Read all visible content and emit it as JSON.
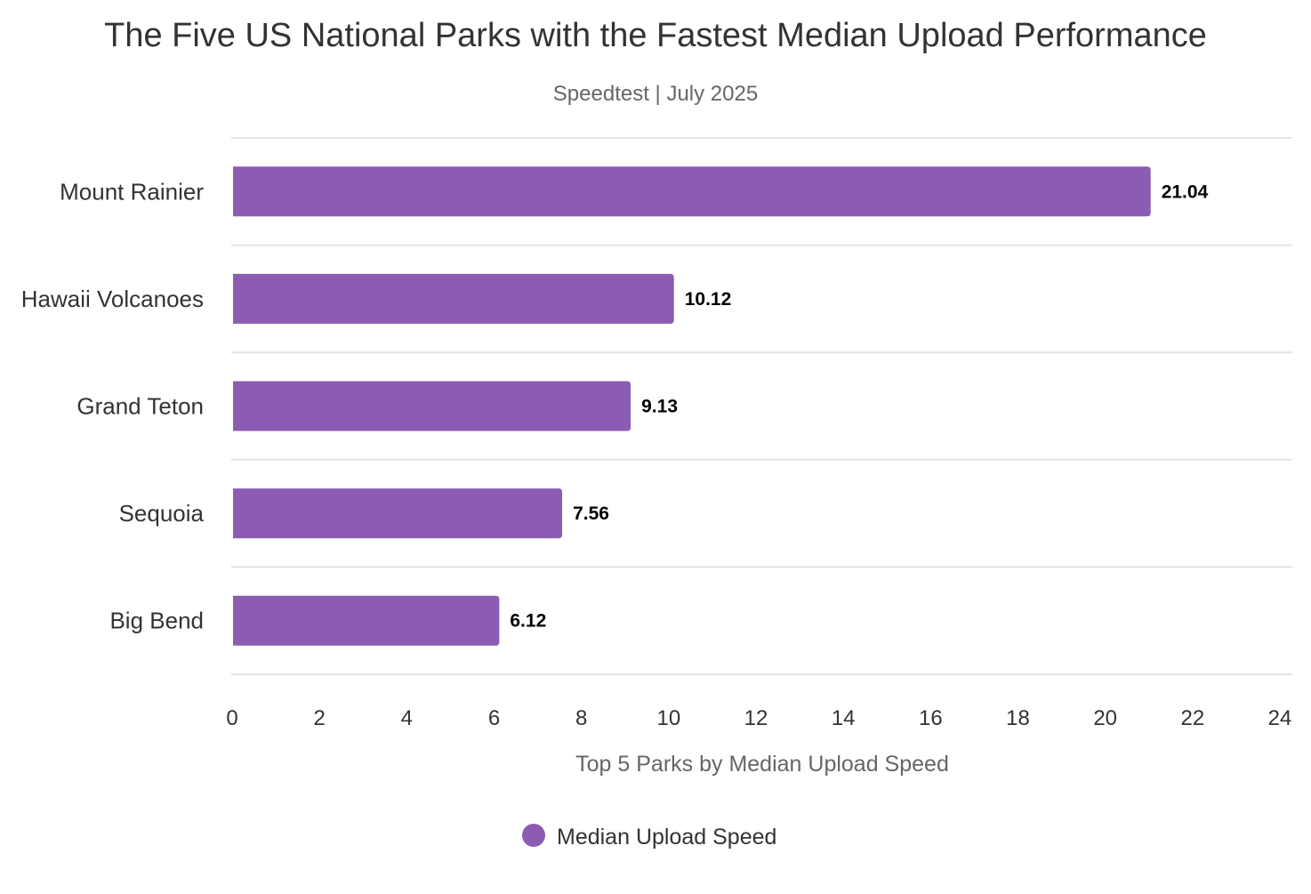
{
  "chart_data": {
    "type": "bar",
    "orientation": "horizontal",
    "title": "The Five US National Parks with the Fastest Median Upload Performance",
    "subtitle": "Speedtest | July 2025",
    "categories": [
      "Mount Rainier",
      "Hawaii Volcanoes",
      "Grand Teton",
      "Sequoia",
      "Big Bend"
    ],
    "series": [
      {
        "name": "Median Upload Speed",
        "values": [
          21.04,
          10.12,
          9.13,
          7.56,
          6.12
        ],
        "data_labels": [
          "21.04",
          "10.12",
          "9.13",
          "7.56",
          "6.12"
        ],
        "color": "#8b5cb1"
      }
    ],
    "xlabel": "Top 5 Parks by Median Upload Speed",
    "ylabel": "",
    "xlim": [
      0,
      24
    ],
    "xticks": [
      0,
      2,
      4,
      6,
      8,
      10,
      12,
      14,
      16,
      18,
      20,
      22,
      24
    ],
    "grid": true,
    "legend_position": "bottom"
  }
}
